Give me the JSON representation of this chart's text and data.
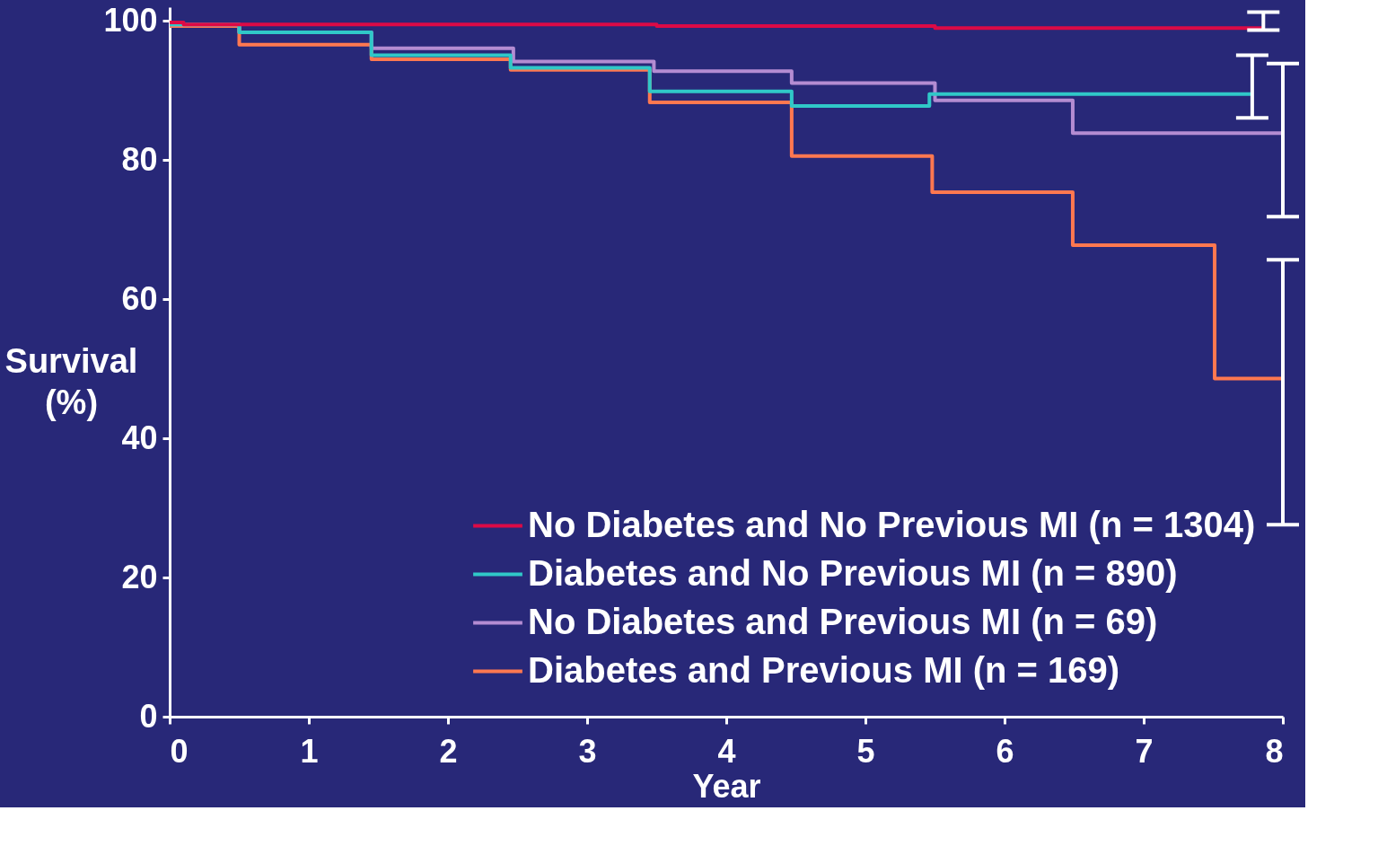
{
  "chart_data": {
    "type": "step",
    "xlabel": "Year",
    "ylabel": "Survival (%)",
    "xlim": [
      0,
      8
    ],
    "xticks": [
      0,
      1,
      2,
      3,
      4,
      5,
      6,
      7,
      8
    ],
    "ylim": [
      0,
      102
    ],
    "yticks": [
      0,
      20,
      40,
      60,
      80,
      100
    ],
    "grid": false,
    "legend": "bottom right",
    "line_style": "solid",
    "marker": "none",
    "series": [
      {
        "name": "No Diabetes and No Previous MI (n = 1304)",
        "color": "#dc0a46",
        "x": [
          0,
          0.1,
          3.5,
          5.5,
          7.86
        ],
        "values": [
          99.8,
          99.5,
          99.3,
          99.0,
          99.0
        ],
        "errors": [
          null,
          null,
          null,
          null,
          [
            98.7,
            101.3
          ]
        ]
      },
      {
        "name": "Diabetes and No Previous MI (n = 890)",
        "color": "#30c8c8",
        "x": [
          0,
          0.5,
          1.45,
          2.45,
          3.45,
          4.47,
          5.46,
          7.78
        ],
        "values": [
          99.5,
          98.4,
          95.1,
          93.3,
          89.9,
          87.8,
          89.5,
          89.5
        ],
        "errors": [
          null,
          null,
          null,
          null,
          null,
          null,
          null,
          [
            86.1,
            95.1
          ]
        ]
      },
      {
        "name": "No Diabetes and Previous MI (n = 69)",
        "color": "#b48cd2",
        "x": [
          0,
          0.5,
          1.45,
          2.47,
          3.48,
          4.47,
          5.5,
          6.49,
          8
        ],
        "values": [
          99.5,
          98.4,
          96.1,
          94.2,
          92.8,
          91.1,
          88.6,
          83.9,
          83.9
        ],
        "errors": [
          null,
          null,
          null,
          null,
          null,
          null,
          null,
          null,
          [
            71.9,
            93.9
          ]
        ]
      },
      {
        "name": "Diabetes and Previous MI (n = 169)",
        "color": "#ff7850",
        "x": [
          0,
          0.5,
          1.45,
          2.45,
          3.45,
          4.47,
          5.48,
          6.49,
          7.51,
          8
        ],
        "values": [
          99.3,
          96.6,
          94.5,
          93.0,
          88.3,
          80.6,
          75.4,
          67.8,
          48.6,
          48.6
        ],
        "errors": [
          null,
          null,
          null,
          null,
          null,
          null,
          null,
          null,
          null,
          [
            27.6,
            65.7
          ]
        ]
      }
    ]
  }
}
